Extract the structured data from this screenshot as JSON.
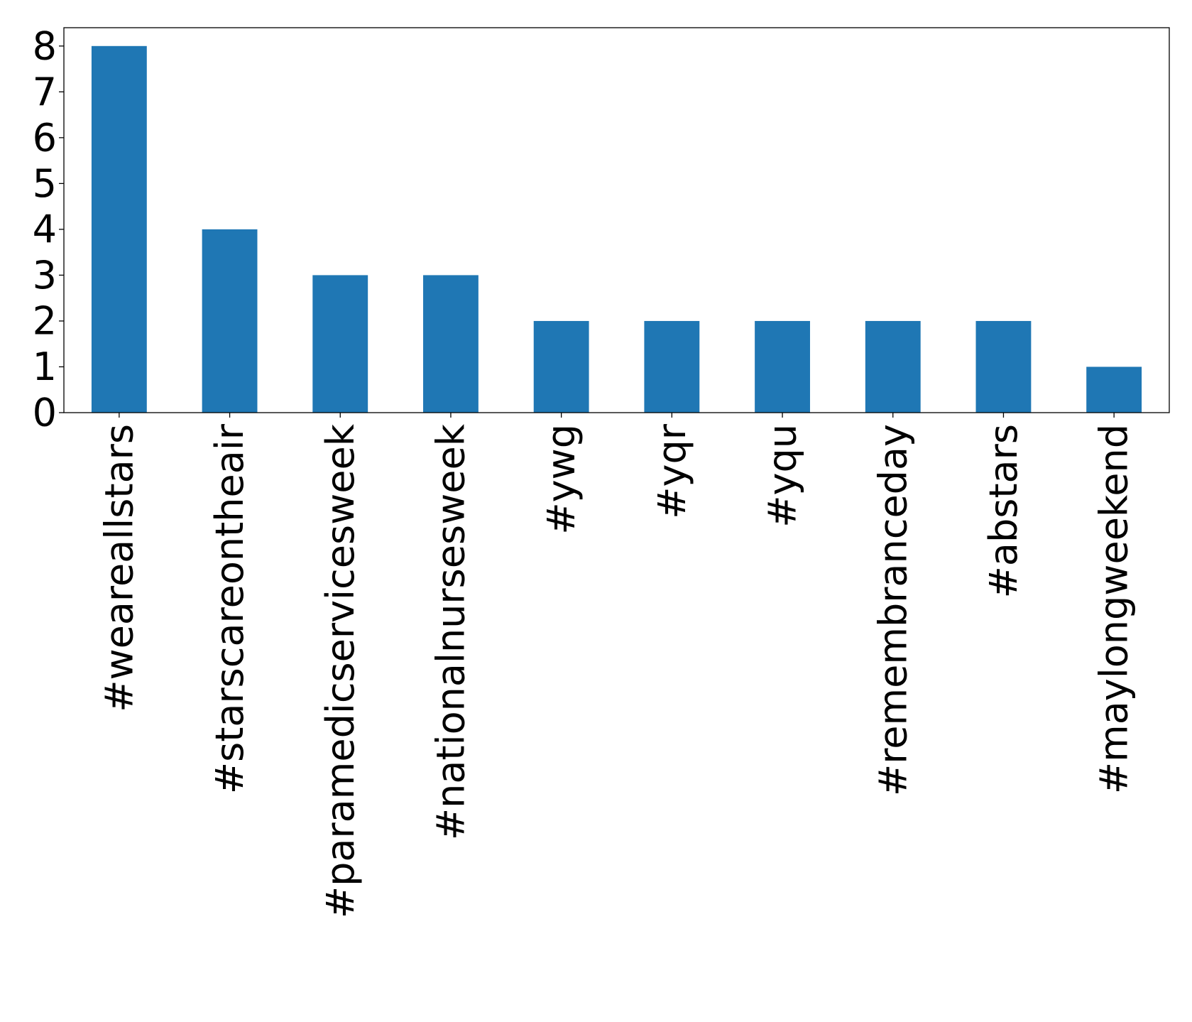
{
  "chart_data": {
    "type": "bar",
    "title": "",
    "xlabel": "",
    "ylabel": "",
    "categories": [
      "#weareallstars",
      "#starscareontheair",
      "#paramedicservicesweek",
      "#nationalnursesweek",
      "#ywg",
      "#yqr",
      "#yqu",
      "#remembranceday",
      "#abstars",
      "#maylongweekend"
    ],
    "values": [
      8,
      4,
      3,
      3,
      2,
      2,
      2,
      2,
      2,
      1
    ],
    "yticks": [
      "0",
      "1",
      "2",
      "3",
      "4",
      "5",
      "6",
      "7",
      "8"
    ],
    "ylim": [
      0,
      8.4
    ],
    "grid": false,
    "legend": "none",
    "bar_color": "#1f77b4"
  }
}
